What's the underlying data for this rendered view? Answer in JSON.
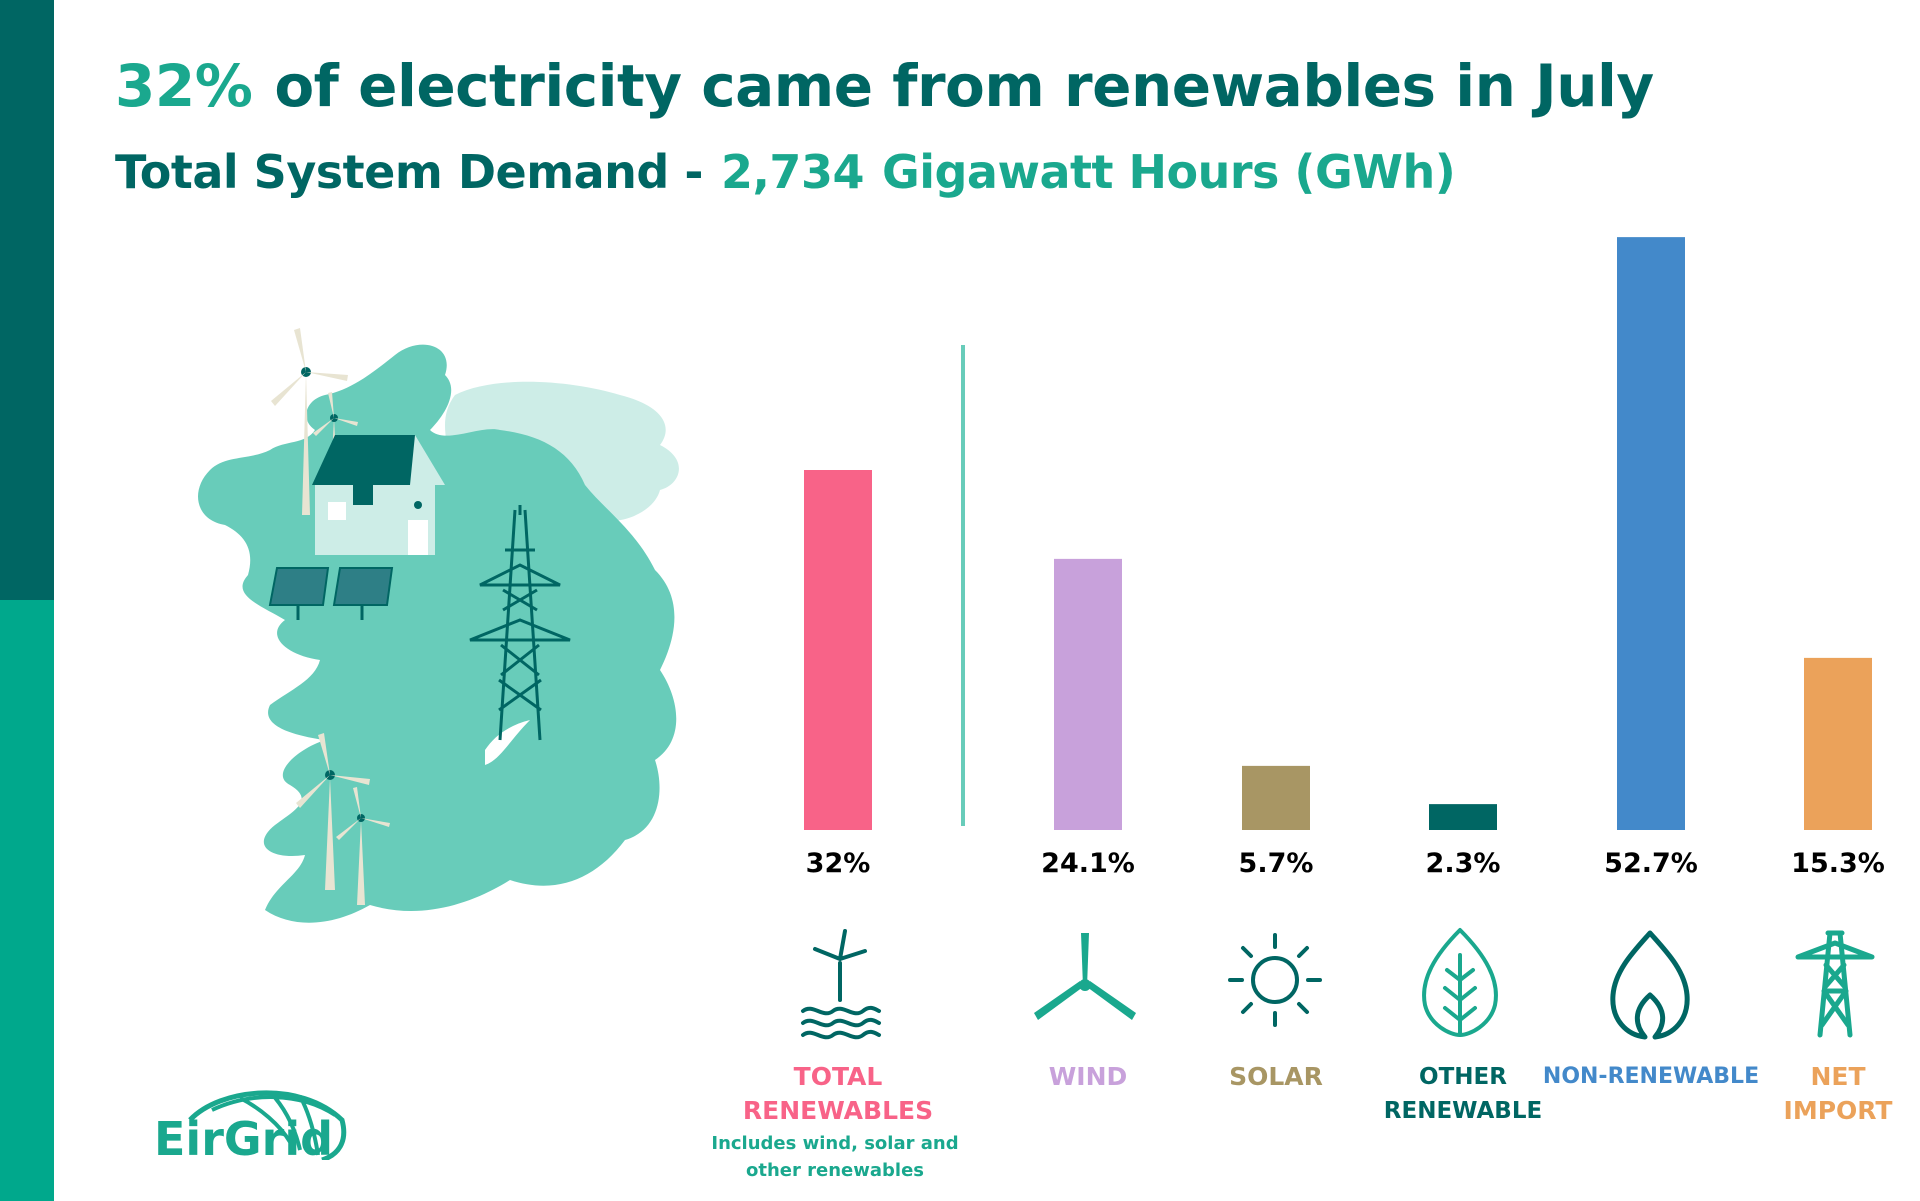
{
  "headline": {
    "value": "32%",
    "text": "of electricity came from renewables in July"
  },
  "subheadline": {
    "label": "Total System Demand -",
    "value": "2,734",
    "unit": "Gigawatt Hours (GWh)"
  },
  "logo_text": "EirGrid",
  "note": "Includes wind, solar and other renewables",
  "colors": {
    "side_dark": "#006663",
    "side_light": "#00A88C",
    "total_renewables": "#F86388",
    "wind": "#C8A1DB",
    "solar": "#A89664",
    "other_renewable": "#006663",
    "non_renewable": "#4389CA",
    "net_import": "#EBA25A"
  },
  "chart_data": {
    "type": "bar",
    "title": "",
    "xlabel": "",
    "ylabel": "",
    "ylim": [
      0,
      60
    ],
    "grid": false,
    "legend": "none",
    "categories": [
      "TOTAL RENEWABLES",
      "WIND",
      "SOLAR",
      "OTHER RENEWABLE",
      "NON-RENEWABLE",
      "NET IMPORT"
    ],
    "values": [
      32,
      24.1,
      5.7,
      2.3,
      52.7,
      15.3
    ],
    "value_labels": [
      "32%",
      "24.1%",
      "5.7%",
      "2.3%",
      "52.7%",
      "15.3%"
    ],
    "unit": "%",
    "colors": [
      "#F86388",
      "#C8A1DB",
      "#A89664",
      "#006663",
      "#4389CA",
      "#EBA25A"
    ],
    "icons": [
      "offshore-wind-turbine-icon",
      "wind-rotor-icon",
      "sun-icon",
      "leaf-icon",
      "flame-icon",
      "pylon-icon"
    ]
  }
}
